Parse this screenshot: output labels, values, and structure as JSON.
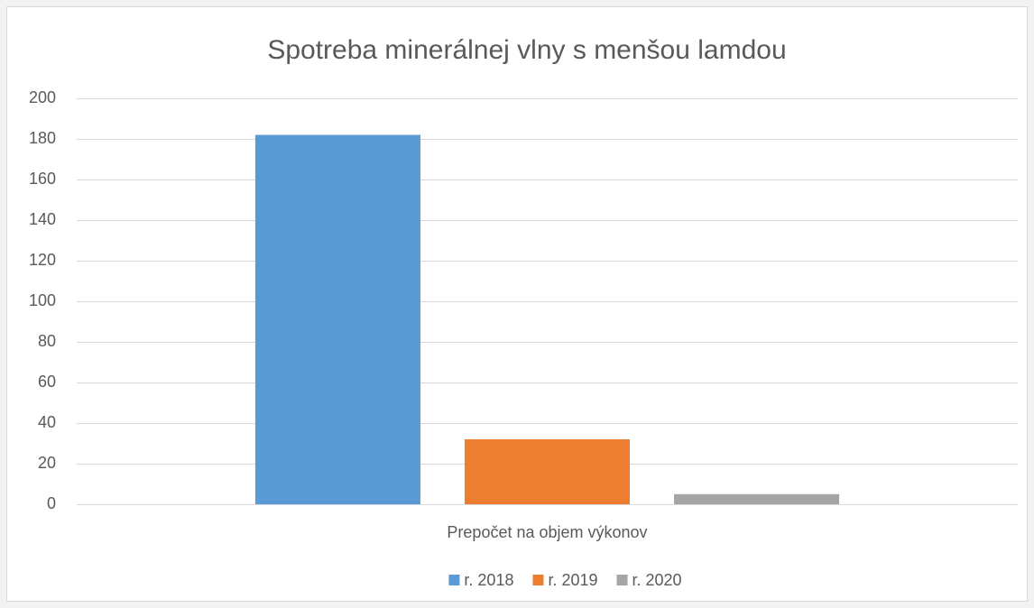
{
  "chart_data": {
    "type": "bar",
    "title": "Spotreba minerálnej vlny s menšou lamdou",
    "categories": [
      "Prepočet na objem výkonov"
    ],
    "series": [
      {
        "name": "r. 2018",
        "color": "#5b9bd5",
        "values": [
          182
        ]
      },
      {
        "name": "r. 2019",
        "color": "#ed7d31",
        "values": [
          32
        ]
      },
      {
        "name": "r. 2020",
        "color": "#a5a5a5",
        "values": [
          5
        ]
      }
    ],
    "ylim": [
      0,
      200
    ],
    "yticks": [
      0,
      20,
      40,
      60,
      80,
      100,
      120,
      140,
      160,
      180,
      200
    ],
    "grid": true,
    "legend": "bottom"
  }
}
